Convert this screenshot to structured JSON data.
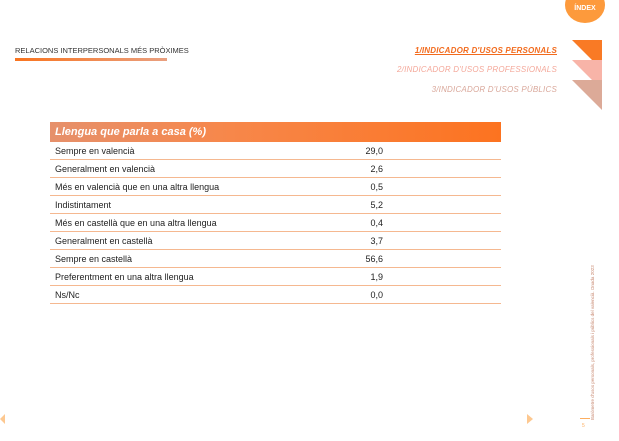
{
  "index_label": "ÍNDEX",
  "section_title": "RELACIONS INTERPERSONALS MÉS PRÒXIMES",
  "nav": [
    {
      "label": "1/INDICADOR D'USOS PERSONALS"
    },
    {
      "label": "2/INDICADOR D'USOS PROFESSIONALS"
    },
    {
      "label": "3/INDICADOR D'USOS PÚBLICS"
    }
  ],
  "table": {
    "title": "Llengua que parla a casa (%)",
    "rows": [
      {
        "label": "Sempre en valencià",
        "value": "29,0"
      },
      {
        "label": "Generalment en valencià",
        "value": "2,6"
      },
      {
        "label": "Més en valencià que en una altra llengua",
        "value": "0,5"
      },
      {
        "label": "Indistintament",
        "value": "5,2"
      },
      {
        "label": "Més en castellà que en una altra llengua",
        "value": "0,4"
      },
      {
        "label": "Generalment en castellà",
        "value": "3,7"
      },
      {
        "label": "Sempre en castellà",
        "value": "56,6"
      },
      {
        "label": "Preferentment en una altra llengua",
        "value": "1,9"
      },
      {
        "label": "Ns/Nc",
        "value": "0,0"
      }
    ]
  },
  "footer": {
    "publication": "Baròmetre d'usos personals, professionals i públics del valencià. Onada 2023",
    "page": "5"
  }
}
